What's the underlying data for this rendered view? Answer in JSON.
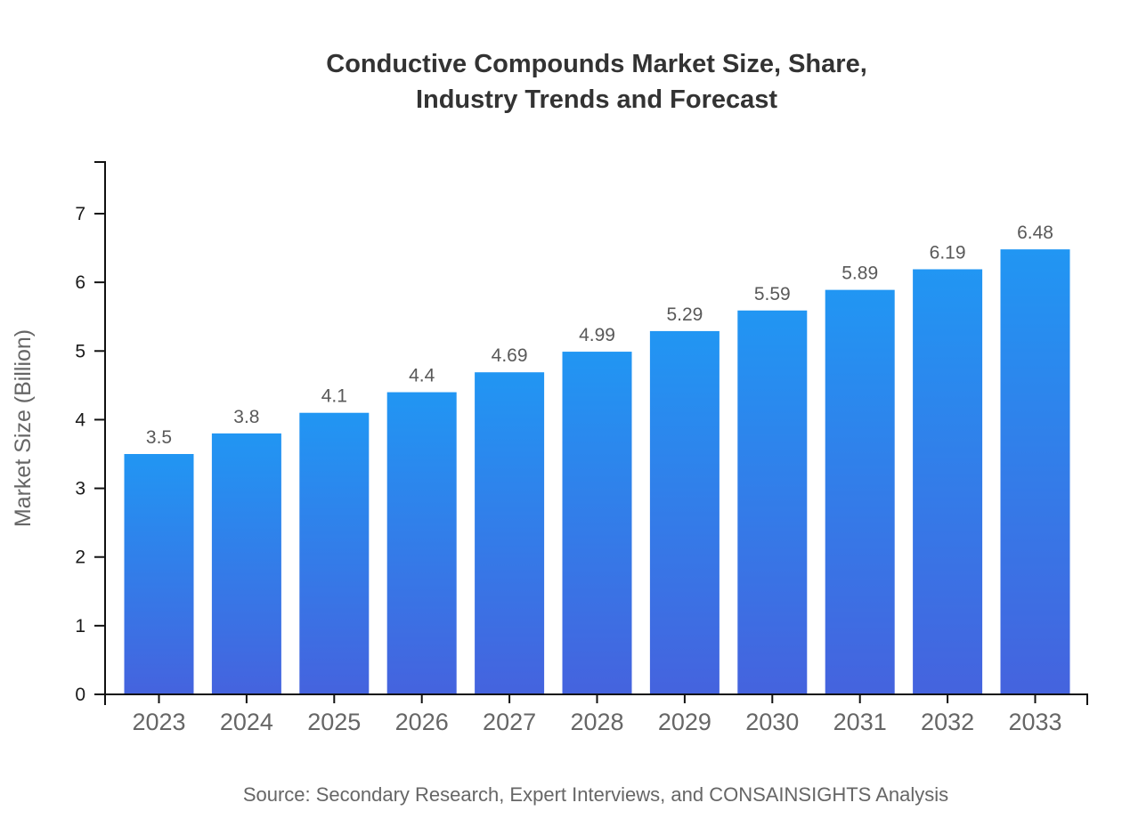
{
  "chart_data": {
    "type": "bar",
    "title": "Conductive Compounds Market Size, Share, Industry Trends and Forecast",
    "title_line1": "Conductive Compounds Market Size, Share,",
    "title_line2": "Industry Trends and Forecast",
    "categories": [
      "2023",
      "2024",
      "2025",
      "2026",
      "2027",
      "2028",
      "2029",
      "2030",
      "2031",
      "2032",
      "2033"
    ],
    "values": [
      3.5,
      3.8,
      4.1,
      4.4,
      4.69,
      4.99,
      5.29,
      5.59,
      5.89,
      6.19,
      6.48
    ],
    "value_labels": [
      "3.5",
      "3.8",
      "4.1",
      "4.4",
      "4.69",
      "4.99",
      "5.29",
      "5.59",
      "5.89",
      "6.19",
      "6.48"
    ],
    "xlabel": "",
    "ylabel": "Market Size (Billion)",
    "ylim": [
      0,
      7.75
    ],
    "yticks": [
      0,
      1,
      2,
      3,
      4,
      5,
      6,
      7
    ],
    "grid": false,
    "legend": "none",
    "bar_gradient_top": "#2196f3",
    "bar_gradient_bottom": "#4563de"
  },
  "footer": {
    "source": "Source: Secondary Research, Expert Interviews, and CONSAINSIGHTS Analysis"
  },
  "colors": {
    "title_text": "#333333",
    "axis_line": "#111111",
    "ytick_text": "#1a1a1a",
    "xtick_text": "#666666",
    "value_label_text": "#595959",
    "axis_title_text": "#666666",
    "source_text": "#666666",
    "background": "#ffffff"
  }
}
